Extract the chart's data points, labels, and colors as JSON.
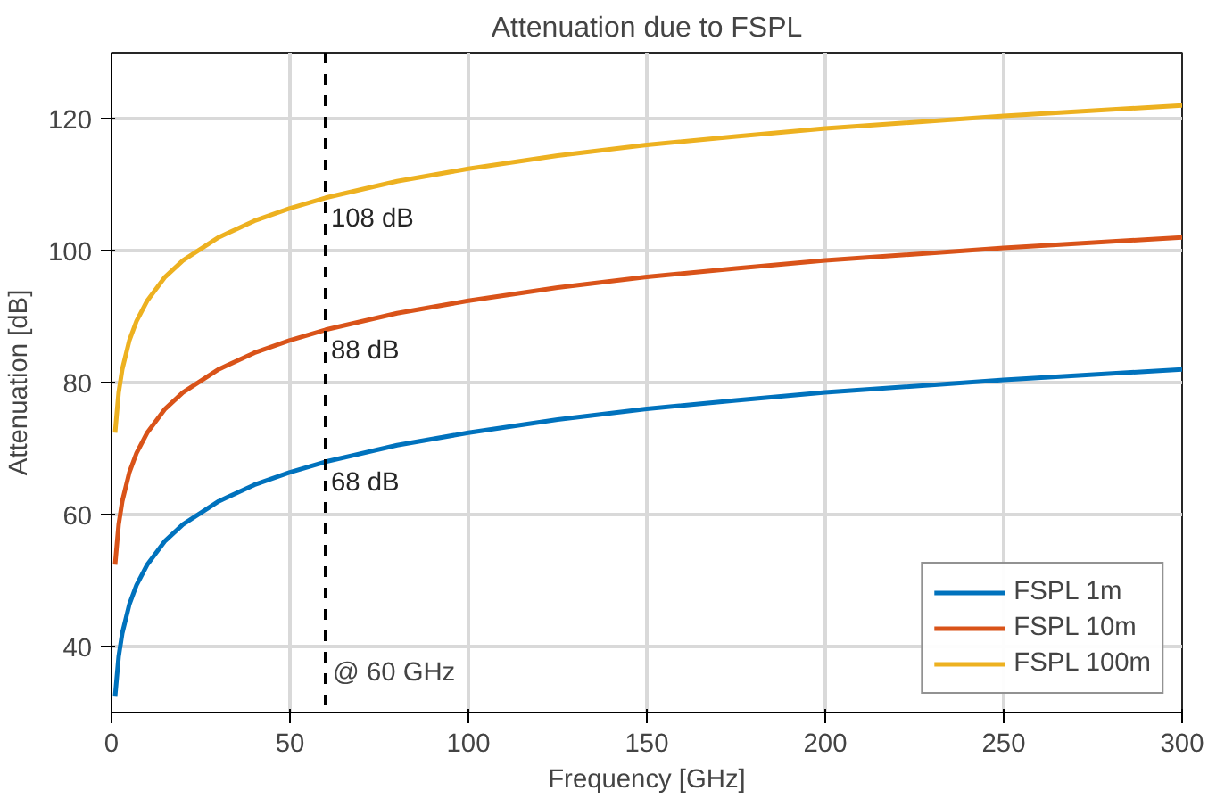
{
  "chart_data": {
    "type": "line",
    "title": "Attenuation due to FSPL",
    "xlabel": "Frequency [GHz]",
    "ylabel": "Attenuation [dB]",
    "x": [
      1,
      2,
      3,
      5,
      7,
      10,
      15,
      20,
      30,
      40,
      50,
      60,
      80,
      100,
      125,
      150,
      175,
      200,
      250,
      300
    ],
    "series": [
      {
        "name": "FSPL 1m",
        "color": "#0072bd",
        "values": [
          32.4,
          38.5,
          42,
          46.4,
          49.3,
          52.4,
          56,
          58.5,
          62,
          64.5,
          66.4,
          68,
          70.5,
          72.4,
          74.4,
          76,
          77.3,
          78.5,
          80.4,
          82
        ]
      },
      {
        "name": "FSPL 10m",
        "color": "#d95319",
        "values": [
          52.4,
          58.5,
          62,
          66.4,
          69.3,
          72.4,
          76,
          78.5,
          82,
          84.5,
          86.4,
          88,
          90.5,
          92.4,
          94.4,
          96,
          97.3,
          98.5,
          100.4,
          102
        ]
      },
      {
        "name": "FSPL 100m",
        "color": "#edb120",
        "values": [
          72.4,
          78.5,
          82,
          86.4,
          89.3,
          92.4,
          96,
          98.5,
          102,
          104.5,
          106.4,
          108,
          110.5,
          112.4,
          114.4,
          116,
          117.3,
          118.5,
          120.4,
          122
        ]
      }
    ],
    "xlim": [
      0,
      300
    ],
    "ylim": [
      30,
      130
    ],
    "xticks": [
      0,
      50,
      100,
      150,
      200,
      250,
      300
    ],
    "yticks": [
      40,
      60,
      80,
      100,
      120
    ],
    "ref_lines": [
      {
        "axis": "x",
        "value": 60,
        "label": "@ 60 GHz",
        "color": "#000000",
        "line_style": "dashed"
      }
    ],
    "annotations": [
      {
        "text": "68 dB",
        "y": 68
      },
      {
        "text": "88 dB",
        "y": 88
      },
      {
        "text": "108 dB",
        "y": 108
      }
    ],
    "grid": true,
    "legend": "bottom right",
    "line_style": "solid",
    "marker": "none"
  }
}
